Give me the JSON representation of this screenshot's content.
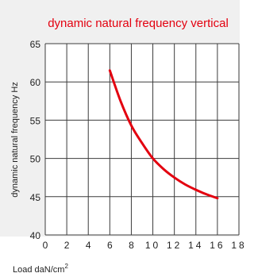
{
  "chart_data": {
    "type": "line",
    "title": "dynamic natural frequency vertical",
    "xlabel": "Load daN/cm",
    "xlabel_sup": "2",
    "ylabel": "dynamic natural frequency Hz",
    "xlim": [
      0,
      18
    ],
    "ylim": [
      40,
      65
    ],
    "x_ticks": [
      0,
      2,
      4,
      6,
      8,
      10,
      12,
      14,
      16,
      18
    ],
    "x_tick_labels": [
      "0",
      "2",
      "4",
      "6",
      "8",
      "10",
      "12",
      "14",
      "16",
      "18"
    ],
    "y_ticks": [
      40,
      45,
      50,
      55,
      60,
      65
    ],
    "y_tick_labels": [
      "40",
      "45",
      "50",
      "55",
      "60",
      "65"
    ],
    "grid": true,
    "series": [
      {
        "color": "#e3000f",
        "x": [
          6,
          7,
          8,
          9,
          10,
          11,
          12,
          13,
          14,
          15,
          16
        ],
        "y": [
          61.5,
          57.5,
          54.3,
          52,
          50,
          48.6,
          47.5,
          46.6,
          45.9,
          45.3,
          44.8
        ]
      }
    ]
  },
  "colors": {
    "title": "#e3000f",
    "panel_background": "#f0f0f0",
    "plot_background": "#ffffff",
    "grid": "#3c3c3c",
    "axis_text": "#1e1e1e"
  }
}
